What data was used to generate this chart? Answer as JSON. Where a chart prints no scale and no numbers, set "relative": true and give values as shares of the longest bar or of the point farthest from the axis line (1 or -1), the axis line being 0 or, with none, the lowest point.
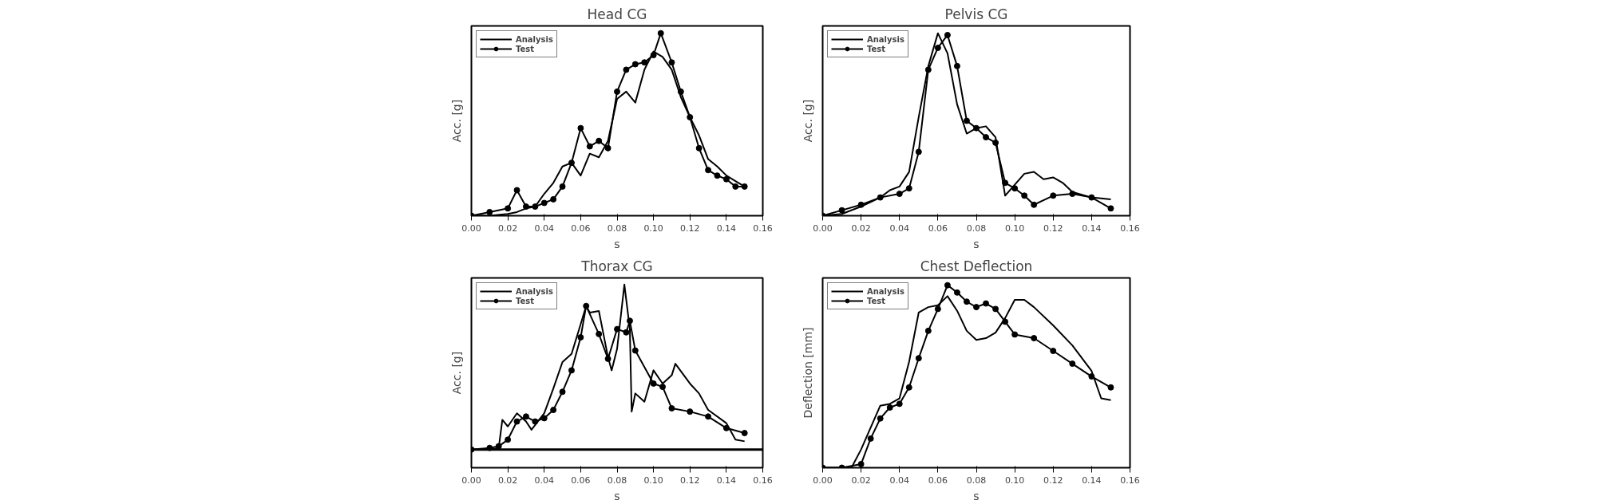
{
  "chart_data": [
    {
      "type": "line",
      "title": "Head CG",
      "xlabel": "s",
      "ylabel": "Acc. [g]",
      "relative": true,
      "tick_labels": "x",
      "legend": "top left",
      "grid": false,
      "xlim": [
        0,
        0.16
      ],
      "xticks": [
        {
          "value": 0,
          "label": "0.00"
        },
        {
          "value": 0.02,
          "label": "0.02"
        },
        {
          "value": 0.04,
          "label": "0.04"
        },
        {
          "value": 0.06,
          "label": "0.06"
        },
        {
          "value": 0.08,
          "label": "0.08"
        },
        {
          "value": 0.1,
          "label": "0.10"
        },
        {
          "value": 0.12,
          "label": "0.12"
        },
        {
          "value": 0.14,
          "label": "0.14"
        },
        {
          "value": 0.16,
          "label": "0.16"
        }
      ],
      "series": [
        {
          "name": "Analysis",
          "color": "#000000",
          "marker": "none",
          "x": [
            0,
            0.01,
            0.02,
            0.025,
            0.03,
            0.035,
            0.04,
            0.045,
            0.05,
            0.055,
            0.06,
            0.065,
            0.07,
            0.075,
            0.08,
            0.085,
            0.09,
            0.095,
            0.1,
            0.105,
            0.11,
            0.115,
            0.12,
            0.125,
            0.13,
            0.135,
            0.14,
            0.145,
            0.15
          ],
          "values": [
            0,
            0,
            0.01,
            0.02,
            0.04,
            0.05,
            0.12,
            0.18,
            0.27,
            0.29,
            0.22,
            0.34,
            0.32,
            0.41,
            0.64,
            0.68,
            0.62,
            0.8,
            0.9,
            0.87,
            0.8,
            0.65,
            0.54,
            0.44,
            0.31,
            0.27,
            0.22,
            0.19,
            0.16
          ]
        },
        {
          "name": "Test",
          "color": "#000000",
          "marker": "circle",
          "x": [
            0,
            0.01,
            0.02,
            0.025,
            0.03,
            0.035,
            0.04,
            0.045,
            0.05,
            0.055,
            0.06,
            0.065,
            0.07,
            0.075,
            0.08,
            0.085,
            0.09,
            0.095,
            0.1,
            0.104,
            0.11,
            0.115,
            0.12,
            0.125,
            0.13,
            0.135,
            0.14,
            0.145,
            0.15
          ],
          "values": [
            0,
            0.02,
            0.04,
            0.14,
            0.05,
            0.05,
            0.07,
            0.09,
            0.16,
            0.29,
            0.48,
            0.38,
            0.41,
            0.37,
            0.68,
            0.8,
            0.83,
            0.84,
            0.88,
            1.0,
            0.84,
            0.68,
            0.54,
            0.37,
            0.25,
            0.22,
            0.2,
            0.16,
            0.16
          ]
        }
      ]
    },
    {
      "type": "line",
      "title": "Pelvis CG",
      "xlabel": "s",
      "ylabel": "Acc. [g]",
      "relative": true,
      "tick_labels": "x",
      "legend": "top left",
      "grid": false,
      "xlim": [
        0,
        0.16
      ],
      "xticks": [
        {
          "value": 0,
          "label": "0.00"
        },
        {
          "value": 0.02,
          "label": "0.02"
        },
        {
          "value": 0.04,
          "label": "0.04"
        },
        {
          "value": 0.06,
          "label": "0.06"
        },
        {
          "value": 0.08,
          "label": "0.08"
        },
        {
          "value": 0.1,
          "label": "0.10"
        },
        {
          "value": 0.12,
          "label": "0.12"
        },
        {
          "value": 0.14,
          "label": "0.14"
        },
        {
          "value": 0.16,
          "label": "0.16"
        }
      ],
      "series": [
        {
          "name": "Analysis",
          "color": "#000000",
          "marker": "none",
          "x": [
            0,
            0.01,
            0.02,
            0.03,
            0.035,
            0.04,
            0.045,
            0.05,
            0.055,
            0.06,
            0.065,
            0.07,
            0.075,
            0.08,
            0.085,
            0.09,
            0.095,
            0.1,
            0.105,
            0.11,
            0.115,
            0.12,
            0.125,
            0.13,
            0.14,
            0.15
          ],
          "values": [
            0,
            0.01,
            0.05,
            0.1,
            0.14,
            0.16,
            0.24,
            0.54,
            0.82,
            1.0,
            0.89,
            0.61,
            0.45,
            0.48,
            0.49,
            0.43,
            0.11,
            0.17,
            0.23,
            0.24,
            0.2,
            0.21,
            0.18,
            0.13,
            0.1,
            0.09
          ]
        },
        {
          "name": "Test",
          "color": "#000000",
          "marker": "circle",
          "x": [
            0,
            0.01,
            0.02,
            0.03,
            0.04,
            0.045,
            0.05,
            0.055,
            0.06,
            0.065,
            0.07,
            0.075,
            0.08,
            0.085,
            0.09,
            0.095,
            0.1,
            0.105,
            0.11,
            0.12,
            0.13,
            0.14,
            0.15
          ],
          "values": [
            0,
            0.03,
            0.06,
            0.1,
            0.12,
            0.15,
            0.35,
            0.8,
            0.92,
            0.99,
            0.82,
            0.52,
            0.48,
            0.43,
            0.4,
            0.18,
            0.15,
            0.11,
            0.06,
            0.11,
            0.12,
            0.1,
            0.04
          ]
        }
      ]
    },
    {
      "type": "line",
      "title": "Thorax CG",
      "xlabel": "s",
      "ylabel": "Acc. [g]",
      "relative": true,
      "tick_labels": "x",
      "legend": "top left",
      "grid": false,
      "xlim": [
        0,
        0.16
      ],
      "xticks": [
        {
          "value": 0,
          "label": "0.00"
        },
        {
          "value": 0.02,
          "label": "0.02"
        },
        {
          "value": 0.04,
          "label": "0.04"
        },
        {
          "value": 0.06,
          "label": "0.06"
        },
        {
          "value": 0.08,
          "label": "0.08"
        },
        {
          "value": 0.1,
          "label": "0.10"
        },
        {
          "value": 0.12,
          "label": "0.12"
        },
        {
          "value": 0.14,
          "label": "0.14"
        },
        {
          "value": 0.16,
          "label": "0.16"
        }
      ],
      "ref_lines": [
        {
          "axis": "y",
          "value": 0,
          "color": "#000000"
        }
      ],
      "series": [
        {
          "name": "Analysis",
          "color": "#000000",
          "marker": "none",
          "x": [
            0,
            0.01,
            0.015,
            0.017,
            0.02,
            0.025,
            0.03,
            0.033,
            0.04,
            0.045,
            0.05,
            0.055,
            0.06,
            0.063,
            0.065,
            0.07,
            0.075,
            0.077,
            0.08,
            0.084,
            0.087,
            0.088,
            0.09,
            0.095,
            0.1,
            0.105,
            0.11,
            0.112,
            0.12,
            0.125,
            0.13,
            0.14,
            0.145,
            0.15
          ],
          "values": [
            0,
            0,
            0.01,
            0.18,
            0.14,
            0.22,
            0.17,
            0.12,
            0.22,
            0.37,
            0.53,
            0.58,
            0.76,
            0.87,
            0.83,
            0.84,
            0.56,
            0.48,
            0.61,
            1.0,
            0.73,
            0.23,
            0.34,
            0.29,
            0.48,
            0.4,
            0.45,
            0.52,
            0.4,
            0.34,
            0.24,
            0.16,
            0.06,
            0.05
          ]
        },
        {
          "name": "Test",
          "color": "#000000",
          "marker": "circle",
          "x": [
            0,
            0.01,
            0.015,
            0.02,
            0.025,
            0.03,
            0.035,
            0.04,
            0.045,
            0.05,
            0.055,
            0.06,
            0.063,
            0.07,
            0.075,
            0.08,
            0.085,
            0.087,
            0.09,
            0.1,
            0.105,
            0.11,
            0.12,
            0.13,
            0.14,
            0.15
          ],
          "values": [
            0,
            0.01,
            0.02,
            0.06,
            0.17,
            0.2,
            0.17,
            0.19,
            0.24,
            0.35,
            0.48,
            0.68,
            0.87,
            0.7,
            0.55,
            0.73,
            0.71,
            0.78,
            0.6,
            0.4,
            0.38,
            0.25,
            0.23,
            0.2,
            0.13,
            0.1
          ]
        }
      ]
    },
    {
      "type": "line",
      "title": "Chest Deflection",
      "xlabel": "s",
      "ylabel": "Deflection [mm]",
      "relative": true,
      "tick_labels": "x",
      "legend": "top left",
      "grid": false,
      "xlim": [
        0,
        0.16
      ],
      "xticks": [
        {
          "value": 0,
          "label": "0.00"
        },
        {
          "value": 0.02,
          "label": "0.02"
        },
        {
          "value": 0.04,
          "label": "0.04"
        },
        {
          "value": 0.06,
          "label": "0.06"
        },
        {
          "value": 0.08,
          "label": "0.08"
        },
        {
          "value": 0.1,
          "label": "0.10"
        },
        {
          "value": 0.12,
          "label": "0.12"
        },
        {
          "value": 0.14,
          "label": "0.14"
        },
        {
          "value": 0.16,
          "label": "0.16"
        }
      ],
      "series": [
        {
          "name": "Analysis",
          "color": "#000000",
          "marker": "none",
          "x": [
            0,
            0.015,
            0.02,
            0.025,
            0.03,
            0.035,
            0.04,
            0.045,
            0.05,
            0.055,
            0.06,
            0.065,
            0.07,
            0.075,
            0.08,
            0.085,
            0.09,
            0.095,
            0.1,
            0.105,
            0.11,
            0.12,
            0.13,
            0.14,
            0.145,
            0.15
          ],
          "values": [
            0,
            0,
            0.1,
            0.22,
            0.34,
            0.35,
            0.38,
            0.58,
            0.85,
            0.88,
            0.89,
            0.94,
            0.86,
            0.75,
            0.7,
            0.71,
            0.74,
            0.82,
            0.92,
            0.92,
            0.88,
            0.78,
            0.67,
            0.53,
            0.38,
            0.37
          ]
        },
        {
          "name": "Test",
          "color": "#000000",
          "marker": "circle",
          "x": [
            0,
            0.01,
            0.02,
            0.025,
            0.03,
            0.035,
            0.04,
            0.045,
            0.05,
            0.055,
            0.06,
            0.065,
            0.07,
            0.075,
            0.08,
            0.085,
            0.09,
            0.095,
            0.1,
            0.11,
            0.12,
            0.13,
            0.14,
            0.15
          ],
          "values": [
            0,
            0,
            0.02,
            0.16,
            0.27,
            0.33,
            0.35,
            0.44,
            0.6,
            0.75,
            0.87,
            1.0,
            0.96,
            0.91,
            0.88,
            0.9,
            0.87,
            0.8,
            0.73,
            0.71,
            0.64,
            0.57,
            0.5,
            0.44
          ]
        }
      ]
    }
  ]
}
